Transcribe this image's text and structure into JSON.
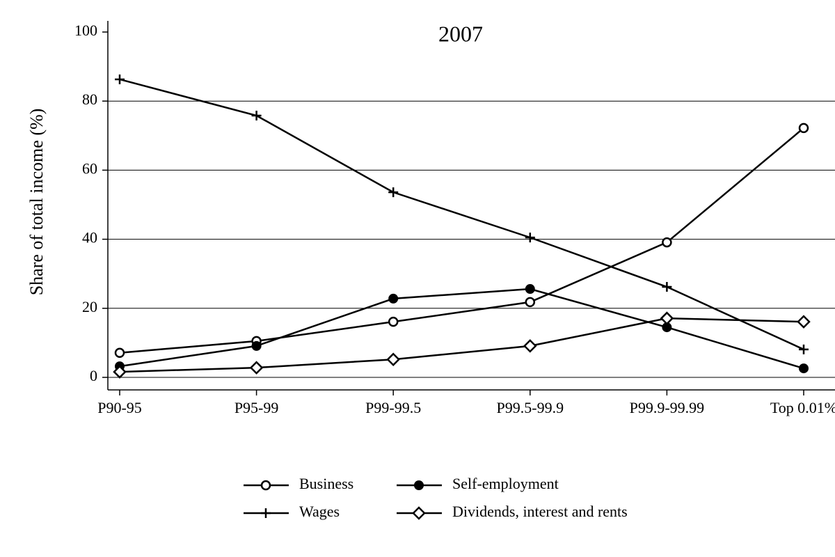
{
  "chart_data": {
    "type": "line",
    "title": "2007",
    "y_label": "Share of total income (%)",
    "categories": [
      "P90-95",
      "P95-99",
      "P99-99.5",
      "P99.5-99.9",
      "P99.9-99.99",
      "Top 0.01%"
    ],
    "series": [
      {
        "name": "Business",
        "color": "#000000",
        "marker": "open-circle",
        "values": [
          7.1,
          10.5,
          16.1,
          21.8,
          39.1,
          72.2
        ]
      },
      {
        "name": "Self-employment",
        "color": "#000000",
        "marker": "filled-circle",
        "values": [
          3.2,
          9.1,
          22.8,
          25.6,
          14.5,
          2.6
        ]
      },
      {
        "name": "Wages",
        "color": "#000000",
        "marker": "plus",
        "values": [
          86.3,
          75.8,
          53.6,
          40.5,
          26.2,
          8.1
        ]
      },
      {
        "name": "Dividends, interest and rents",
        "color": "#000000",
        "marker": "open-diamond",
        "values": [
          1.6,
          2.8,
          5.2,
          9.1,
          17.1,
          16.1
        ]
      }
    ],
    "ylim": [
      0,
      100
    ],
    "yticks": [
      0,
      20,
      40,
      60,
      80,
      100
    ],
    "grid": true,
    "legend": "bottom"
  }
}
